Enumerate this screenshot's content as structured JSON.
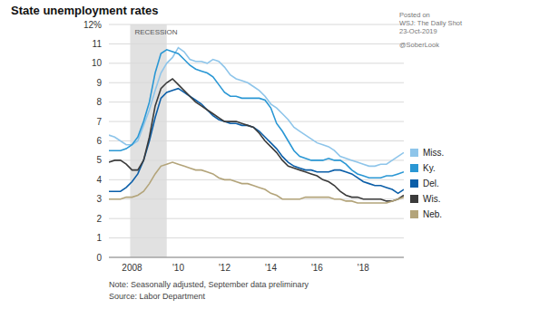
{
  "chart_data": {
    "type": "line",
    "title": "State unemployment rates",
    "notes": [
      "Note: Seasonally adjusted, September data preliminary",
      "Source: Labor Department"
    ],
    "annotations": [
      "Posted on",
      "WSJ: The Daily Shot",
      "23-Oct-2019",
      "@SoberLook"
    ],
    "shaded_regions": [
      {
        "label": "RECESSION",
        "start": 2007.92,
        "end": 2009.5
      }
    ],
    "x": [
      2007.0,
      2007.25,
      2007.5,
      2007.75,
      2008.0,
      2008.25,
      2008.5,
      2008.75,
      2009.0,
      2009.25,
      2009.5,
      2009.75,
      2010.0,
      2010.25,
      2010.5,
      2010.75,
      2011.0,
      2011.25,
      2011.5,
      2011.75,
      2012.0,
      2012.25,
      2012.5,
      2012.75,
      2013.0,
      2013.25,
      2013.5,
      2013.75,
      2014.0,
      2014.25,
      2014.5,
      2014.75,
      2015.0,
      2015.25,
      2015.5,
      2015.75,
      2016.0,
      2016.25,
      2016.5,
      2016.75,
      2017.0,
      2017.25,
      2017.5,
      2017.75,
      2018.0,
      2018.25,
      2018.5,
      2018.75,
      2019.0,
      2019.25,
      2019.5,
      2019.75
    ],
    "series": [
      {
        "name": "Miss.",
        "color": "#8ec5ea",
        "values": [
          6.3,
          6.2,
          6.0,
          5.8,
          5.8,
          6.0,
          6.8,
          7.6,
          8.6,
          9.5,
          10.0,
          10.3,
          10.8,
          10.6,
          10.2,
          10.1,
          10.1,
          10.0,
          10.2,
          10.1,
          9.8,
          9.4,
          9.2,
          9.1,
          9.0,
          8.8,
          8.6,
          8.3,
          7.9,
          7.7,
          7.4,
          7.1,
          6.7,
          6.5,
          6.3,
          6.1,
          5.9,
          5.8,
          5.7,
          5.5,
          5.2,
          5.1,
          5.0,
          4.9,
          4.8,
          4.7,
          4.7,
          4.8,
          4.8,
          5.0,
          5.2,
          5.4
        ]
      },
      {
        "name": "Ky.",
        "color": "#2a97d4",
        "values": [
          5.5,
          5.5,
          5.5,
          5.6,
          5.8,
          6.2,
          7.0,
          8.0,
          9.5,
          10.5,
          10.7,
          10.6,
          10.5,
          10.2,
          9.9,
          9.7,
          9.6,
          9.5,
          9.3,
          8.9,
          8.5,
          8.3,
          8.3,
          8.2,
          8.2,
          8.2,
          8.2,
          8.1,
          7.7,
          6.9,
          6.5,
          6.0,
          5.5,
          5.2,
          5.1,
          5.0,
          5.0,
          5.0,
          5.1,
          5.0,
          5.0,
          4.8,
          4.5,
          4.3,
          4.2,
          4.1,
          4.1,
          4.1,
          4.2,
          4.2,
          4.3,
          4.4
        ]
      },
      {
        "name": "Del.",
        "color": "#0b5ea8",
        "values": [
          3.4,
          3.4,
          3.4,
          3.6,
          3.9,
          4.3,
          5.0,
          6.0,
          7.2,
          8.2,
          8.5,
          8.6,
          8.7,
          8.5,
          8.3,
          8.1,
          7.9,
          7.6,
          7.3,
          7.1,
          7.0,
          6.9,
          6.9,
          6.8,
          6.8,
          6.7,
          6.5,
          6.2,
          5.9,
          5.6,
          5.2,
          4.9,
          4.7,
          4.6,
          4.5,
          4.5,
          4.4,
          4.4,
          4.4,
          4.5,
          4.5,
          4.4,
          4.3,
          4.1,
          3.9,
          3.8,
          3.7,
          3.7,
          3.6,
          3.5,
          3.3,
          3.5
        ]
      },
      {
        "name": "Wis.",
        "color": "#3b3b3b",
        "values": [
          4.9,
          5.0,
          5.0,
          4.8,
          4.5,
          4.5,
          5.0,
          6.2,
          7.8,
          8.7,
          9.0,
          9.2,
          8.9,
          8.6,
          8.3,
          8.0,
          7.8,
          7.6,
          7.4,
          7.2,
          7.0,
          7.0,
          7.0,
          6.9,
          6.8,
          6.7,
          6.4,
          6.0,
          5.7,
          5.4,
          5.0,
          4.7,
          4.6,
          4.5,
          4.4,
          4.3,
          4.2,
          4.0,
          3.9,
          3.7,
          3.4,
          3.2,
          3.1,
          3.1,
          3.0,
          3.0,
          3.0,
          3.0,
          2.9,
          2.9,
          3.0,
          3.2
        ]
      },
      {
        "name": "Neb.",
        "color": "#b3a47a",
        "values": [
          3.0,
          3.0,
          3.0,
          3.1,
          3.1,
          3.2,
          3.4,
          3.8,
          4.3,
          4.7,
          4.8,
          4.9,
          4.8,
          4.7,
          4.6,
          4.5,
          4.5,
          4.4,
          4.3,
          4.1,
          4.0,
          4.0,
          3.9,
          3.8,
          3.8,
          3.7,
          3.6,
          3.5,
          3.3,
          3.2,
          3.0,
          3.0,
          3.0,
          3.0,
          3.1,
          3.1,
          3.1,
          3.1,
          3.1,
          3.0,
          3.0,
          2.9,
          2.9,
          2.8,
          2.8,
          2.8,
          2.8,
          2.8,
          2.8,
          2.9,
          3.0,
          3.1
        ]
      }
    ],
    "xlim": [
      2007.0,
      2019.75
    ],
    "xticks": [
      {
        "value": 2008,
        "label": "2008"
      },
      {
        "value": 2010,
        "label": "'10"
      },
      {
        "value": 2012,
        "label": "'12"
      },
      {
        "value": 2014,
        "label": "'14"
      },
      {
        "value": 2016,
        "label": "'16"
      },
      {
        "value": 2018,
        "label": "'18"
      }
    ],
    "ylim": [
      0,
      12
    ],
    "yticks": [
      0,
      1,
      2,
      3,
      4,
      5,
      6,
      7,
      8,
      9,
      10,
      11,
      {
        "value": 12,
        "label": "12%"
      }
    ],
    "grid": true,
    "legend": "right"
  }
}
